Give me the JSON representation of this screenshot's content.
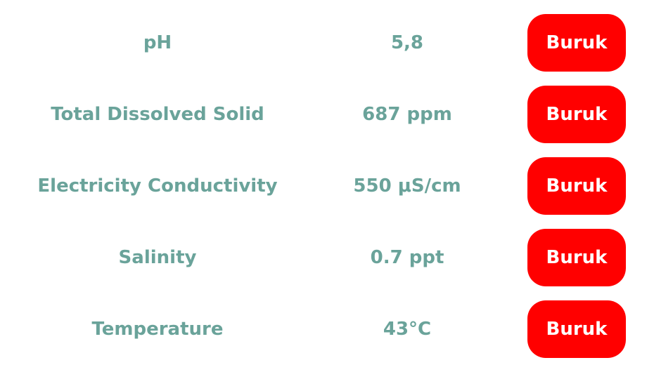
{
  "status_color": "#ff0000",
  "label_color": "#6aa39a",
  "rows": [
    {
      "parameter": "pH",
      "value": "5,8",
      "status": "Buruk"
    },
    {
      "parameter": "Total Dissolved Solid",
      "value": "687 ppm",
      "status": "Buruk"
    },
    {
      "parameter": "Electricity Conductivity",
      "value": "550 μS/cm",
      "status": "Buruk"
    },
    {
      "parameter": "Salinity",
      "value": "0.7 ppt",
      "status": "Buruk"
    },
    {
      "parameter": "Temperature",
      "value": "43°C",
      "status": "Buruk"
    }
  ]
}
